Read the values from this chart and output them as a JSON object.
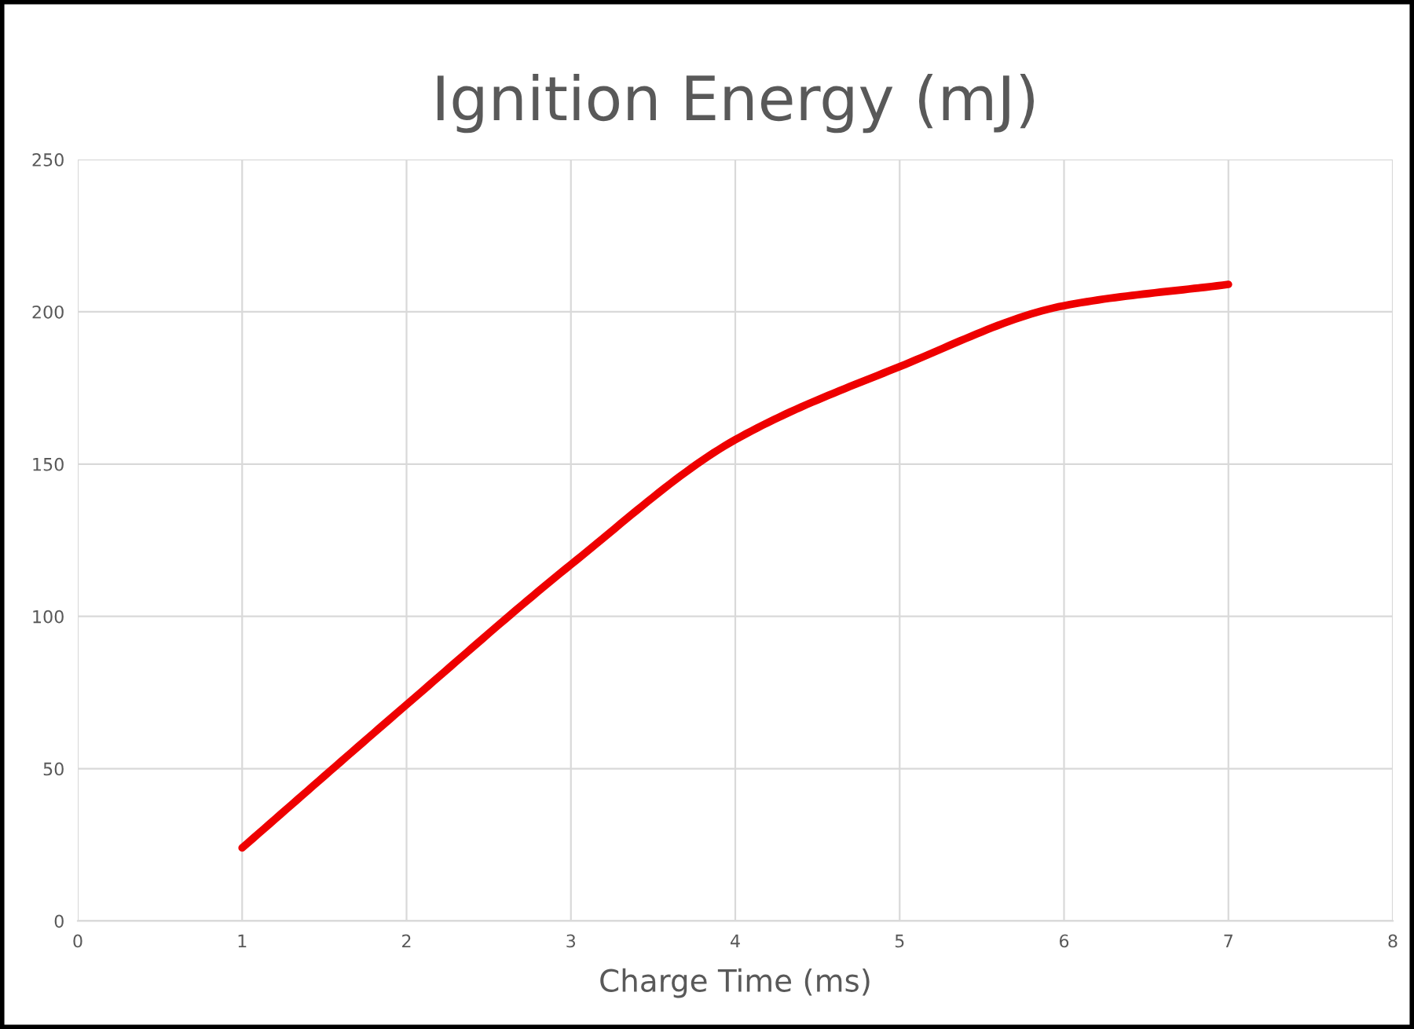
{
  "chart_data": {
    "type": "line",
    "title": "Ignition Energy (mJ)",
    "xlabel": "Charge Time (ms)",
    "x": [
      1,
      2,
      3,
      4,
      5,
      6,
      7
    ],
    "series": [
      {
        "color": "#ee0000",
        "values": [
          24,
          71,
          117,
          158,
          182,
          202,
          209
        ]
      }
    ],
    "xlim": [
      0,
      8
    ],
    "xticks": [
      0,
      1,
      2,
      3,
      4,
      5,
      6,
      7,
      8
    ],
    "ylim": [
      0,
      250
    ],
    "yticks": [
      0,
      50,
      100,
      150,
      200,
      250
    ],
    "grid": true,
    "legend": false,
    "marker": "none",
    "line_style": "solid"
  }
}
